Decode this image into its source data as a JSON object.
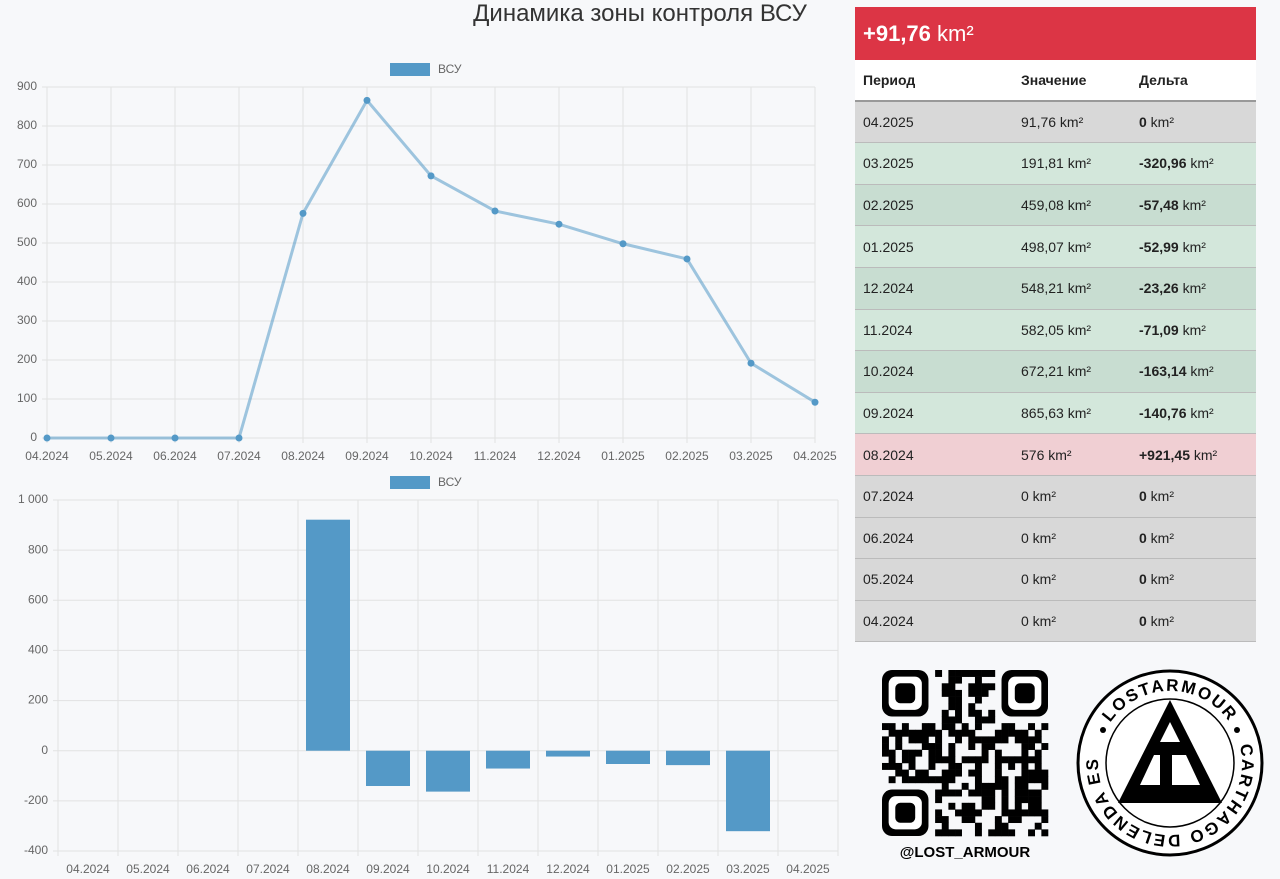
{
  "title": "Динамика зоны контроля ВСУ",
  "chart_data": [
    {
      "type": "line",
      "categories": [
        "04.2024",
        "05.2024",
        "06.2024",
        "07.2024",
        "08.2024",
        "09.2024",
        "10.2024",
        "11.2024",
        "12.2024",
        "01.2025",
        "02.2025",
        "03.2025",
        "04.2025"
      ],
      "series": [
        {
          "name": "ВСУ",
          "color": "#5499c7",
          "values": [
            0,
            0,
            0,
            0,
            576,
            865.63,
            672.21,
            582.05,
            548.21,
            498.07,
            459.08,
            191.81,
            91.76
          ]
        }
      ],
      "ylim": [
        0,
        900
      ],
      "yticks": [
        0,
        100,
        200,
        300,
        400,
        500,
        600,
        700,
        800,
        900
      ],
      "grid": true
    },
    {
      "type": "bar",
      "categories": [
        "04.2024",
        "05.2024",
        "06.2024",
        "07.2024",
        "08.2024",
        "09.2024",
        "10.2024",
        "11.2024",
        "12.2024",
        "01.2025",
        "02.2025",
        "03.2025",
        "04.2025"
      ],
      "series": [
        {
          "name": "ВСУ",
          "color": "#5499c7",
          "values": [
            0,
            0,
            0,
            0,
            921.45,
            -140.76,
            -163.14,
            -71.09,
            -23.26,
            -52.99,
            -57.48,
            -320.96,
            0
          ]
        }
      ],
      "ylim": [
        -400,
        1000
      ],
      "yticks": [
        -400,
        -200,
        0,
        200,
        400,
        600,
        800,
        {
          "value": 1000,
          "label": "1 000"
        }
      ],
      "grid": true
    }
  ],
  "summary": "+91,76 km²",
  "table": {
    "columns": [
      "Период",
      "Значение",
      "Дельта"
    ],
    "rows": [
      [
        "04.2025",
        "91,76 km²",
        "0 km²"
      ],
      [
        "03.2025",
        "191,81 km²",
        "-320,96 km²"
      ],
      [
        "02.2025",
        "459,08 km²",
        "-57,48 km²"
      ],
      [
        "01.2025",
        "498,07 km²",
        "-52,99 km²"
      ],
      [
        "12.2024",
        "548,21 km²",
        "-23,26 km²"
      ],
      [
        "11.2024",
        "582,05 km²",
        "-71,09 km²"
      ],
      [
        "10.2024",
        "672,21 km²",
        "-163,14 km²"
      ],
      [
        "09.2024",
        "865,63 km²",
        "-140,76 km²"
      ],
      [
        "08.2024",
        "576 km²",
        "+921,45 km²"
      ],
      [
        "07.2024",
        "0 km²",
        "0 km²"
      ],
      [
        "06.2024",
        "0 km²",
        "0 km²"
      ],
      [
        "05.2024",
        "0 km²",
        "0 km²"
      ],
      [
        "04.2024",
        "0 km²",
        "0 km²"
      ]
    ]
  },
  "qr_caption": "@LOST_ARMOUR",
  "logo": {
    "top": "LOSTARMOUR",
    "bottom": "CARTHAGO DELENDA EST"
  }
}
